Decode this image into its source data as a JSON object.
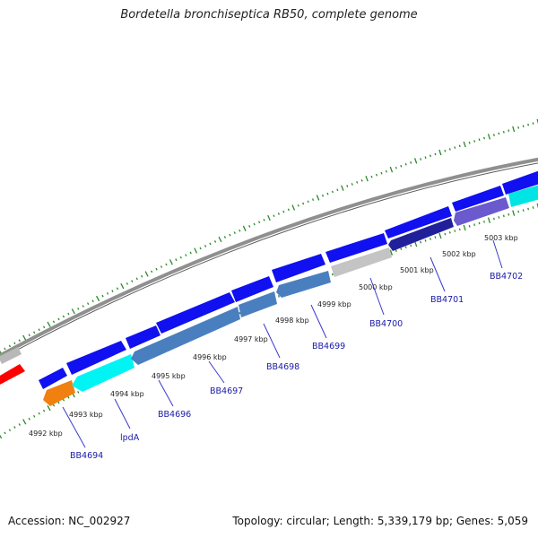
{
  "title": "Bordetella bronchiseptica RB50, complete genome",
  "footer": {
    "accession": "Accession: NC_002927",
    "summary": "Topology: circular; Length: 5,339,179 bp; Genes: 5,059"
  },
  "colors": {
    "backbone": "#8a8a8a",
    "tick": "#2a8a2a",
    "label_line": "#3333cc",
    "gene_label": "#1a1aa8"
  },
  "kbp_labels": [
    "4992 kbp",
    "4993 kbp",
    "4994 kbp",
    "4995 kbp",
    "4996 kbp",
    "4997 kbp",
    "4998 kbp",
    "4999 kbp",
    "5000 kbp",
    "5001 kbp",
    "5002 kbp",
    "5003 kbp"
  ],
  "gene_labels": [
    "BB4694",
    "lpdA",
    "BB4696",
    "BB4697",
    "BB4698",
    "BB4699",
    "BB4700",
    "BB4701",
    "BB4702"
  ]
}
